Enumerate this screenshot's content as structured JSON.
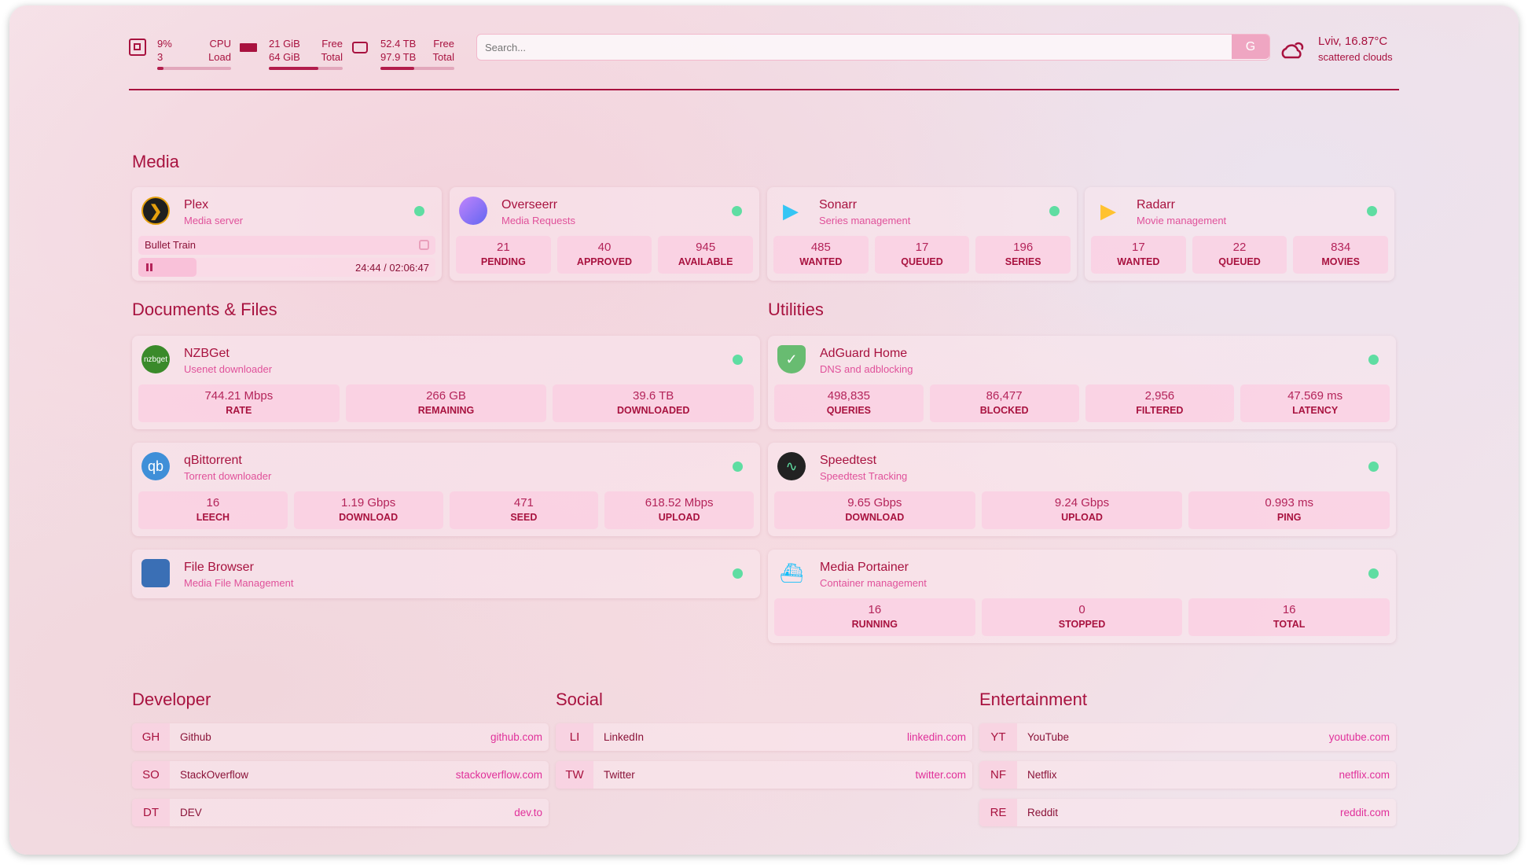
{
  "header": {
    "cpu": {
      "value": "9%",
      "sub": "3",
      "label1": "CPU",
      "label2": "Load",
      "percent": 9
    },
    "memory": {
      "value": "21 GiB",
      "sub": "64 GiB",
      "label1": "Free",
      "label2": "Total",
      "percent": 67
    },
    "disk": {
      "value": "52.4 TB",
      "sub": "97.9 TB",
      "label1": "Free",
      "label2": "Total",
      "percent": 46
    },
    "search": {
      "placeholder": "Search...",
      "button": "G"
    },
    "weather": {
      "location": "Lviv, 16.87°C",
      "condition": "scattered clouds",
      "icon": "cloud-sun-icon"
    }
  },
  "colors": {
    "accent": "#a8123f",
    "subtitle": "#e0519a",
    "status_ok": "#5fdda2"
  },
  "sections": {
    "media": "Media",
    "documents": "Documents & Files",
    "utilities": "Utilities",
    "developer": "Developer",
    "social": "Social",
    "entertainment": "Entertainment"
  },
  "media": [
    {
      "name": "Plex",
      "desc": "Media server",
      "icon": "plex-icon",
      "now_playing": {
        "title": "Bullet Train",
        "time": "24:44 / 02:06:47",
        "progress": 19.5
      }
    },
    {
      "name": "Overseerr",
      "desc": "Media Requests",
      "icon": "overseerr-icon",
      "stats": [
        {
          "v": "21",
          "l": "PENDING"
        },
        {
          "v": "40",
          "l": "APPROVED"
        },
        {
          "v": "945",
          "l": "AVAILABLE"
        }
      ]
    },
    {
      "name": "Sonarr",
      "desc": "Series management",
      "icon": "sonarr-icon",
      "stats": [
        {
          "v": "485",
          "l": "WANTED"
        },
        {
          "v": "17",
          "l": "QUEUED"
        },
        {
          "v": "196",
          "l": "SERIES"
        }
      ]
    },
    {
      "name": "Radarr",
      "desc": "Movie management",
      "icon": "radarr-icon",
      "stats": [
        {
          "v": "17",
          "l": "WANTED"
        },
        {
          "v": "22",
          "l": "QUEUED"
        },
        {
          "v": "834",
          "l": "MOVIES"
        }
      ]
    }
  ],
  "documents": [
    {
      "name": "NZBGet",
      "desc": "Usenet downloader",
      "icon": "nzbget-icon",
      "icon_text": "nzbget",
      "stats": [
        {
          "v": "744.21 Mbps",
          "l": "RATE"
        },
        {
          "v": "266 GB",
          "l": "REMAINING"
        },
        {
          "v": "39.6 TB",
          "l": "DOWNLOADED"
        }
      ]
    },
    {
      "name": "qBittorrent",
      "desc": "Torrent downloader",
      "icon": "qbittorrent-icon",
      "icon_text": "qb",
      "stats": [
        {
          "v": "16",
          "l": "LEECH"
        },
        {
          "v": "1.19 Gbps",
          "l": "DOWNLOAD"
        },
        {
          "v": "471",
          "l": "SEED"
        },
        {
          "v": "618.52 Mbps",
          "l": "UPLOAD"
        }
      ]
    },
    {
      "name": "File Browser",
      "desc": "Media File Management",
      "icon": "file-browser-icon",
      "icon_text": "",
      "stats": []
    }
  ],
  "utilities": [
    {
      "name": "AdGuard Home",
      "desc": "DNS and adblocking",
      "icon": "adguard-shield-icon",
      "icon_text": "✓",
      "stats": [
        {
          "v": "498,835",
          "l": "QUERIES"
        },
        {
          "v": "86,477",
          "l": "BLOCKED"
        },
        {
          "v": "2,956",
          "l": "FILTERED"
        },
        {
          "v": "47.569 ms",
          "l": "LATENCY"
        }
      ]
    },
    {
      "name": "Speedtest",
      "desc": "Speedtest Tracking",
      "icon": "speedtest-icon",
      "icon_text": "∿",
      "stats": [
        {
          "v": "9.65 Gbps",
          "l": "DOWNLOAD"
        },
        {
          "v": "9.24 Gbps",
          "l": "UPLOAD"
        },
        {
          "v": "0.993 ms",
          "l": "PING"
        }
      ]
    },
    {
      "name": "Media Portainer",
      "desc": "Container management",
      "icon": "portainer-icon",
      "icon_text": "⛴",
      "stats": [
        {
          "v": "16",
          "l": "RUNNING"
        },
        {
          "v": "0",
          "l": "STOPPED"
        },
        {
          "v": "16",
          "l": "TOTAL"
        }
      ]
    }
  ],
  "bookmarks": {
    "developer": [
      {
        "abbr": "GH",
        "name": "Github",
        "url": "github.com"
      },
      {
        "abbr": "SO",
        "name": "StackOverflow",
        "url": "stackoverflow.com"
      },
      {
        "abbr": "DT",
        "name": "DEV",
        "url": "dev.to"
      }
    ],
    "social": [
      {
        "abbr": "LI",
        "name": "LinkedIn",
        "url": "linkedin.com"
      },
      {
        "abbr": "TW",
        "name": "Twitter",
        "url": "twitter.com"
      }
    ],
    "entertainment": [
      {
        "abbr": "YT",
        "name": "YouTube",
        "url": "youtube.com"
      },
      {
        "abbr": "NF",
        "name": "Netflix",
        "url": "netflix.com"
      },
      {
        "abbr": "RE",
        "name": "Reddit",
        "url": "reddit.com"
      }
    ]
  }
}
